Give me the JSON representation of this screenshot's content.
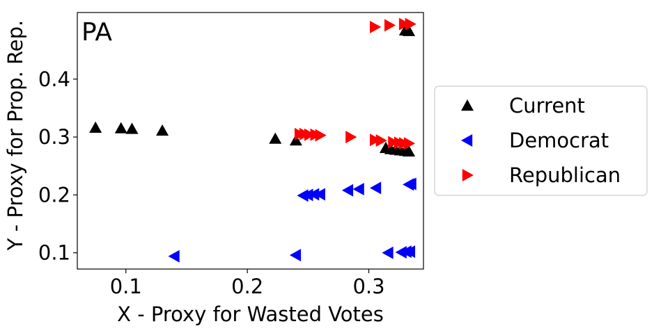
{
  "chart_data": {
    "type": "scatter",
    "panel_label": "PA",
    "xlabel": "X - Proxy for Wasted Votes",
    "ylabel": "Y - Proxy for Prop. Rep.",
    "xlim": [
      0.06,
      0.345
    ],
    "ylim": [
      0.072,
      0.515
    ],
    "xticks": [
      0.1,
      0.2,
      0.3
    ],
    "xtick_labels": [
      "0.1",
      "0.2",
      "0.3"
    ],
    "yticks": [
      0.1,
      0.2,
      0.3,
      0.4
    ],
    "ytick_labels": [
      "0.1",
      "0.2",
      "0.3",
      "0.4"
    ],
    "grid": false,
    "legend_position": "right, outside plot",
    "series": [
      {
        "name": "Current",
        "marker": "triangle-up",
        "color": "#000000",
        "points": [
          {
            "x": 0.075,
            "y": 0.316
          },
          {
            "x": 0.096,
            "y": 0.315
          },
          {
            "x": 0.105,
            "y": 0.314
          },
          {
            "x": 0.13,
            "y": 0.311
          },
          {
            "x": 0.223,
            "y": 0.297
          },
          {
            "x": 0.24,
            "y": 0.294
          },
          {
            "x": 0.314,
            "y": 0.281
          },
          {
            "x": 0.318,
            "y": 0.279
          },
          {
            "x": 0.322,
            "y": 0.278
          },
          {
            "x": 0.326,
            "y": 0.277
          },
          {
            "x": 0.33,
            "y": 0.276
          },
          {
            "x": 0.333,
            "y": 0.275
          },
          {
            "x": 0.33,
            "y": 0.484
          },
          {
            "x": 0.333,
            "y": 0.483
          }
        ]
      },
      {
        "name": "Democrat",
        "marker": "triangle-left",
        "color": "#0000ff",
        "points": [
          {
            "x": 0.14,
            "y": 0.094
          },
          {
            "x": 0.24,
            "y": 0.096
          },
          {
            "x": 0.316,
            "y": 0.1
          },
          {
            "x": 0.327,
            "y": 0.101
          },
          {
            "x": 0.331,
            "y": 0.102
          },
          {
            "x": 0.334,
            "y": 0.102
          },
          {
            "x": 0.246,
            "y": 0.199
          },
          {
            "x": 0.25,
            "y": 0.2
          },
          {
            "x": 0.255,
            "y": 0.201
          },
          {
            "x": 0.26,
            "y": 0.201
          },
          {
            "x": 0.283,
            "y": 0.208
          },
          {
            "x": 0.292,
            "y": 0.21
          },
          {
            "x": 0.306,
            "y": 0.212
          },
          {
            "x": 0.333,
            "y": 0.218
          },
          {
            "x": 0.335,
            "y": 0.219
          }
        ]
      },
      {
        "name": "Republican",
        "marker": "triangle-right",
        "color": "#ff0000",
        "points": [
          {
            "x": 0.243,
            "y": 0.305
          },
          {
            "x": 0.247,
            "y": 0.305
          },
          {
            "x": 0.251,
            "y": 0.304
          },
          {
            "x": 0.256,
            "y": 0.304
          },
          {
            "x": 0.26,
            "y": 0.303
          },
          {
            "x": 0.285,
            "y": 0.3
          },
          {
            "x": 0.305,
            "y": 0.295
          },
          {
            "x": 0.31,
            "y": 0.294
          },
          {
            "x": 0.32,
            "y": 0.291
          },
          {
            "x": 0.325,
            "y": 0.29
          },
          {
            "x": 0.329,
            "y": 0.289
          },
          {
            "x": 0.333,
            "y": 0.289
          },
          {
            "x": 0.305,
            "y": 0.49
          },
          {
            "x": 0.317,
            "y": 0.493
          },
          {
            "x": 0.329,
            "y": 0.495
          },
          {
            "x": 0.334,
            "y": 0.495
          }
        ]
      }
    ]
  }
}
